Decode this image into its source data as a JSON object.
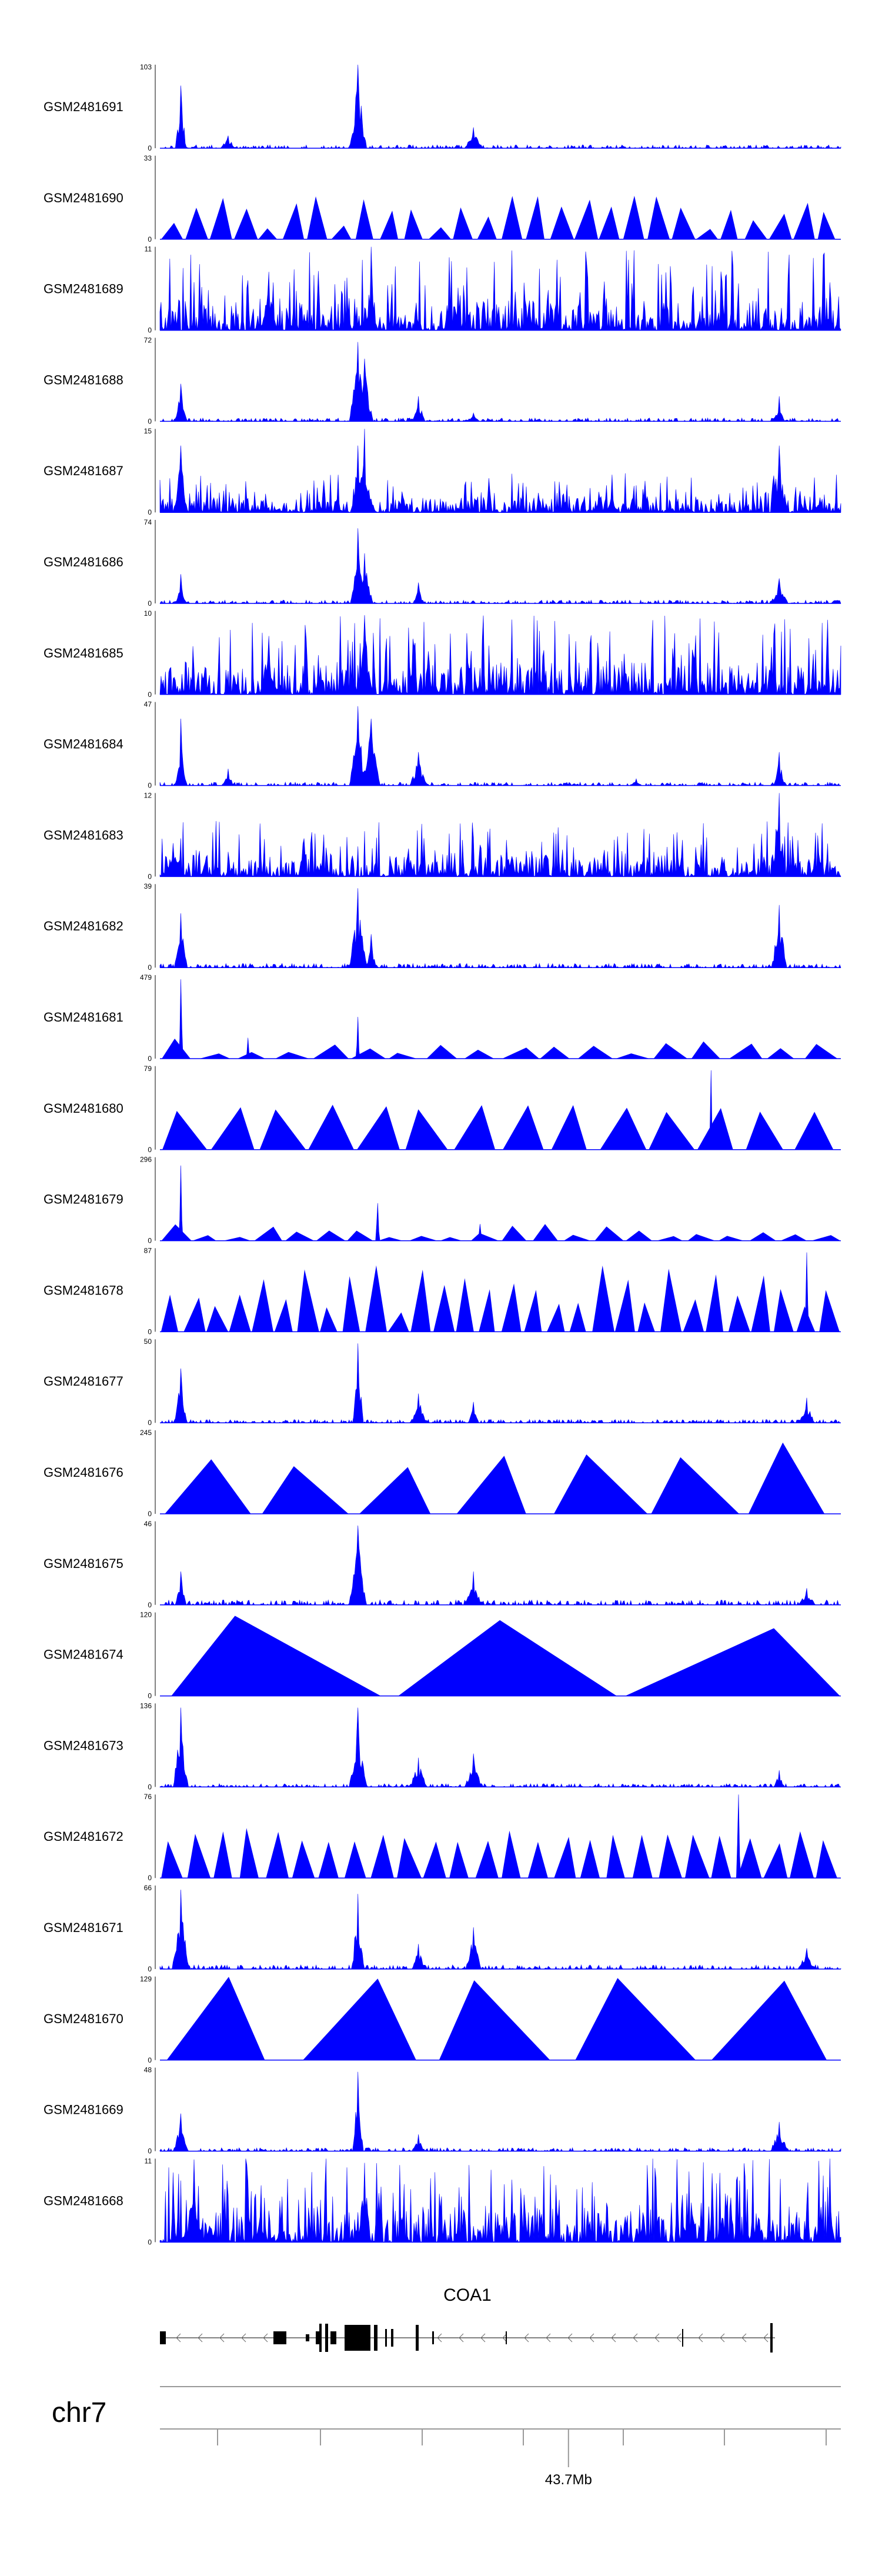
{
  "chart_data": {
    "type": "area",
    "title": "",
    "color": "#0000ff",
    "x_range_bp": [
      43640000,
      43740000
    ],
    "tracks": [
      {
        "name": "GSM2481691",
        "ymax": 103,
        "ymax_label": "103",
        "ymin_label": "0",
        "style": "peaky",
        "peaks": [
          [
            0.03,
            0.75
          ],
          [
            0.29,
            1.0
          ],
          [
            0.46,
            0.25
          ],
          [
            0.1,
            0.15
          ]
        ],
        "noise": 0.04
      },
      {
        "name": "GSM2481690",
        "ymax": 33,
        "ymax_label": "33",
        "ymin_label": "0",
        "style": "sparse",
        "tri": [
          0.05,
          0.6,
          28
        ],
        "noise": 0.0
      },
      {
        "name": "GSM2481689",
        "ymax": 11,
        "ymax_label": "11",
        "ymin_label": "0",
        "style": "dense",
        "peaks": [
          [
            0.31,
            1.0
          ],
          [
            0.16,
            0.7
          ]
        ],
        "noise": 0.4
      },
      {
        "name": "GSM2481688",
        "ymax": 72,
        "ymax_label": "72",
        "ymin_label": "0",
        "style": "peaky",
        "peaks": [
          [
            0.03,
            0.45
          ],
          [
            0.29,
            0.95
          ],
          [
            0.3,
            0.75
          ],
          [
            0.38,
            0.3
          ],
          [
            0.46,
            0.1
          ],
          [
            0.91,
            0.3
          ]
        ],
        "noise": 0.04
      },
      {
        "name": "GSM2481687",
        "ymax": 15,
        "ymax_label": "15",
        "ymin_label": "0",
        "style": "dense",
        "peaks": [
          [
            0.3,
            1.0
          ],
          [
            0.29,
            0.8
          ],
          [
            0.91,
            0.8
          ],
          [
            0.03,
            0.8
          ]
        ],
        "noise": 0.2
      },
      {
        "name": "GSM2481686",
        "ymax": 74,
        "ymax_label": "74",
        "ymin_label": "0",
        "style": "peaky",
        "peaks": [
          [
            0.03,
            0.35
          ],
          [
            0.29,
            0.9
          ],
          [
            0.3,
            0.6
          ],
          [
            0.38,
            0.25
          ],
          [
            0.91,
            0.3
          ]
        ],
        "noise": 0.04
      },
      {
        "name": "GSM2481685",
        "ymax": 10,
        "ymax_label": "10",
        "ymin_label": "0",
        "style": "dense",
        "peaks": [
          [
            0.3,
            0.95
          ],
          [
            0.16,
            0.7
          ]
        ],
        "noise": 0.4
      },
      {
        "name": "GSM2481684",
        "ymax": 47,
        "ymax_label": "47",
        "ymin_label": "0",
        "style": "peaky",
        "peaks": [
          [
            0.03,
            0.8
          ],
          [
            0.1,
            0.2
          ],
          [
            0.29,
            0.95
          ],
          [
            0.31,
            0.8
          ],
          [
            0.38,
            0.4
          ],
          [
            0.91,
            0.4
          ],
          [
            0.7,
            0.08
          ]
        ],
        "noise": 0.04
      },
      {
        "name": "GSM2481683",
        "ymax": 12,
        "ymax_label": "12",
        "ymin_label": "0",
        "style": "dense",
        "peaks": [
          [
            0.91,
            1.0
          ],
          [
            0.02,
            0.4
          ]
        ],
        "noise": 0.28
      },
      {
        "name": "GSM2481682",
        "ymax": 39,
        "ymax_label": "39",
        "ymin_label": "0",
        "style": "peaky",
        "peaks": [
          [
            0.03,
            0.65
          ],
          [
            0.29,
            0.95
          ],
          [
            0.31,
            0.4
          ],
          [
            0.91,
            0.75
          ]
        ],
        "noise": 0.05
      },
      {
        "name": "GSM2481681",
        "ymax": 479,
        "ymax_label": "479",
        "ymin_label": "0",
        "style": "sparse",
        "tri": [
          0.05,
          0.25,
          18
        ],
        "peaks": [
          [
            0.03,
            0.95
          ],
          [
            0.29,
            0.5
          ],
          [
            0.13,
            0.25
          ]
        ],
        "noise": 0.0
      },
      {
        "name": "GSM2481680",
        "ymax": 79,
        "ymax_label": "79",
        "ymin_label": "0",
        "style": "sparse",
        "tri": [
          0.45,
          0.55,
          14
        ],
        "peaks": [
          [
            0.81,
            0.95
          ]
        ],
        "noise": 0.0
      },
      {
        "name": "GSM2481679",
        "ymax": 296,
        "ymax_label": "296",
        "ymin_label": "0",
        "style": "sparse",
        "tri": [
          0.04,
          0.2,
          22
        ],
        "peaks": [
          [
            0.03,
            0.9
          ],
          [
            0.32,
            0.45
          ],
          [
            0.47,
            0.2
          ]
        ],
        "noise": 0.0
      },
      {
        "name": "GSM2481678",
        "ymax": 87,
        "ymax_label": "87",
        "ymin_label": "0",
        "style": "sparse",
        "tri": [
          0.2,
          0.8,
          30
        ],
        "peaks": [
          [
            0.95,
            0.95
          ]
        ],
        "noise": 0.0
      },
      {
        "name": "GSM2481677",
        "ymax": 50,
        "ymax_label": "50",
        "ymin_label": "0",
        "style": "peaky",
        "peaks": [
          [
            0.03,
            0.65
          ],
          [
            0.29,
            0.95
          ],
          [
            0.38,
            0.35
          ],
          [
            0.46,
            0.25
          ],
          [
            0.95,
            0.3
          ]
        ],
        "noise": 0.04
      },
      {
        "name": "GSM2481676",
        "ymax": 245,
        "ymax_label": "245",
        "ymin_label": "0",
        "style": "sparse",
        "tri": [
          0.55,
          1.0,
          7
        ],
        "noise": 0.0
      },
      {
        "name": "GSM2481675",
        "ymax": 46,
        "ymax_label": "46",
        "ymin_label": "0",
        "style": "peaky",
        "peaks": [
          [
            0.03,
            0.4
          ],
          [
            0.29,
            0.95
          ],
          [
            0.46,
            0.4
          ],
          [
            0.95,
            0.2
          ]
        ],
        "noise": 0.06
      },
      {
        "name": "GSM2481674",
        "ymax": 120,
        "ymax_label": "120",
        "ymin_label": "0",
        "style": "sparse",
        "tri": [
          0.8,
          1.0,
          3
        ],
        "noise": 0.0
      },
      {
        "name": "GSM2481673",
        "ymax": 136,
        "ymax_label": "136",
        "ymin_label": "0",
        "style": "peaky",
        "peaks": [
          [
            0.03,
            0.95
          ],
          [
            0.29,
            0.95
          ],
          [
            0.38,
            0.35
          ],
          [
            0.46,
            0.4
          ],
          [
            0.91,
            0.2
          ]
        ],
        "noise": 0.04
      },
      {
        "name": "GSM2481672",
        "ymax": 76,
        "ymax_label": "76",
        "ymin_label": "0",
        "style": "sparse",
        "tri": [
          0.4,
          0.6,
          26
        ],
        "peaks": [
          [
            0.85,
            1.0
          ]
        ],
        "noise": 0.0
      },
      {
        "name": "GSM2481671",
        "ymax": 66,
        "ymax_label": "66",
        "ymin_label": "0",
        "style": "peaky",
        "peaks": [
          [
            0.03,
            0.95
          ],
          [
            0.29,
            0.9
          ],
          [
            0.38,
            0.3
          ],
          [
            0.46,
            0.5
          ],
          [
            0.95,
            0.25
          ]
        ],
        "noise": 0.05
      },
      {
        "name": "GSM2481670",
        "ymax": 129,
        "ymax_label": "129",
        "ymin_label": "0",
        "style": "sparse",
        "tri": [
          0.95,
          1.0,
          5
        ],
        "noise": 0.0
      },
      {
        "name": "GSM2481669",
        "ymax": 48,
        "ymax_label": "48",
        "ymin_label": "0",
        "style": "peaky",
        "peaks": [
          [
            0.03,
            0.45
          ],
          [
            0.29,
            0.95
          ],
          [
            0.38,
            0.2
          ],
          [
            0.91,
            0.35
          ]
        ],
        "noise": 0.04
      },
      {
        "name": "GSM2481668",
        "ymax": 11,
        "ymax_label": "11",
        "ymin_label": "0",
        "style": "dense",
        "peaks": [
          [
            0.3,
            0.95
          ],
          [
            0.05,
            0.9
          ]
        ],
        "noise": 0.45
      }
    ],
    "gene": {
      "name": "COA1",
      "strand": "-"
    },
    "chromosome": "chr7",
    "axis_tick_label": "43.7Mb",
    "axis_tick_bp": 43700000
  }
}
